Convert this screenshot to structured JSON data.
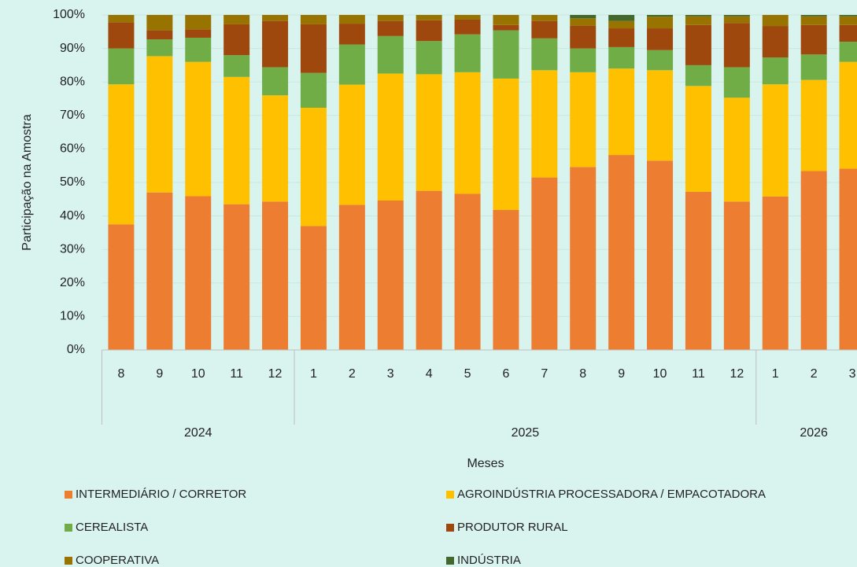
{
  "chart_data": {
    "type": "stacked_bar_percent",
    "y_axis_label": "Participação na Amostra",
    "x_axis_label": "Meses",
    "categories": [
      "8",
      "9",
      "10",
      "11",
      "12",
      "1",
      "2",
      "3",
      "4",
      "5",
      "6",
      "7",
      "8",
      "9",
      "10",
      "11",
      "12",
      "1",
      "2",
      "3"
    ],
    "groups": [
      {
        "label": "2024",
        "size": 5
      },
      {
        "label": "2025",
        "size": 12
      },
      {
        "label": "2026",
        "size": 3
      }
    ],
    "series": [
      {
        "name": "INTERMEDIÁRIO / CORRETOR",
        "color": "#ed7d31",
        "values": [
          37.5,
          47,
          45.9,
          43.5,
          44.3,
          37,
          43.3,
          44.6,
          47.5,
          46.6,
          41.8,
          51.5,
          54.6,
          58.2,
          56.5,
          47.2,
          44.3,
          45.8,
          53.4,
          54.1
        ]
      },
      {
        "name": "AGROINDÚSTRIA PROCESSADORA / EMPACOTADORA",
        "color": "#ffc000",
        "values": [
          41.8,
          40.7,
          40.1,
          38,
          31.7,
          35.3,
          35.9,
          37.9,
          34.8,
          36.3,
          39.2,
          32,
          28.3,
          25.8,
          27,
          31.6,
          31,
          33.5,
          27.2,
          31.9
        ]
      },
      {
        "name": "CEREALISTA",
        "color": "#70ad47",
        "values": [
          10.7,
          5,
          7.2,
          6.5,
          8.4,
          10.4,
          12,
          11.2,
          9.9,
          11.3,
          14.4,
          9.5,
          7.1,
          6.4,
          6,
          6.2,
          9.1,
          8,
          7.6,
          6
        ]
      },
      {
        "name": "PRODUTOR RURAL",
        "color": "#9e480e",
        "values": [
          7.8,
          2.7,
          2.5,
          9.2,
          13.8,
          14.5,
          6.2,
          4.5,
          6.2,
          4.4,
          1.6,
          5.2,
          6.8,
          5.6,
          6.5,
          12,
          13.2,
          9.4,
          8.8,
          5
        ]
      },
      {
        "name": "COOPERATIVA",
        "color": "#997300",
        "values": [
          2.2,
          4.6,
          4.3,
          2.8,
          1.8,
          2.8,
          2.6,
          1.8,
          1.6,
          1.4,
          3,
          1.8,
          2.2,
          2.2,
          3.5,
          2.6,
          2,
          3.3,
          2.6,
          2.6
        ]
      },
      {
        "name": "INDÚSTRIA",
        "color": "#43682b",
        "values": [
          0,
          0,
          0,
          0,
          0,
          0,
          0,
          0,
          0,
          0,
          0,
          0,
          1,
          1.8,
          0.5,
          0.4,
          0.4,
          0,
          0.4,
          0.4
        ]
      }
    ],
    "ylim": [
      0,
      100
    ],
    "yticks": [
      {
        "value": 0,
        "label": "0%"
      },
      {
        "value": 10,
        "label": "10%"
      },
      {
        "value": 20,
        "label": "20%"
      },
      {
        "value": 30,
        "label": "30%"
      },
      {
        "value": 40,
        "label": "40%"
      },
      {
        "value": 50,
        "label": "50%"
      },
      {
        "value": 60,
        "label": "60%"
      },
      {
        "value": 70,
        "label": "70%"
      },
      {
        "value": 80,
        "label": "80%"
      },
      {
        "value": 90,
        "label": "90%"
      },
      {
        "value": 100,
        "label": "100%"
      }
    ],
    "grid": true,
    "legend": "bottom"
  }
}
